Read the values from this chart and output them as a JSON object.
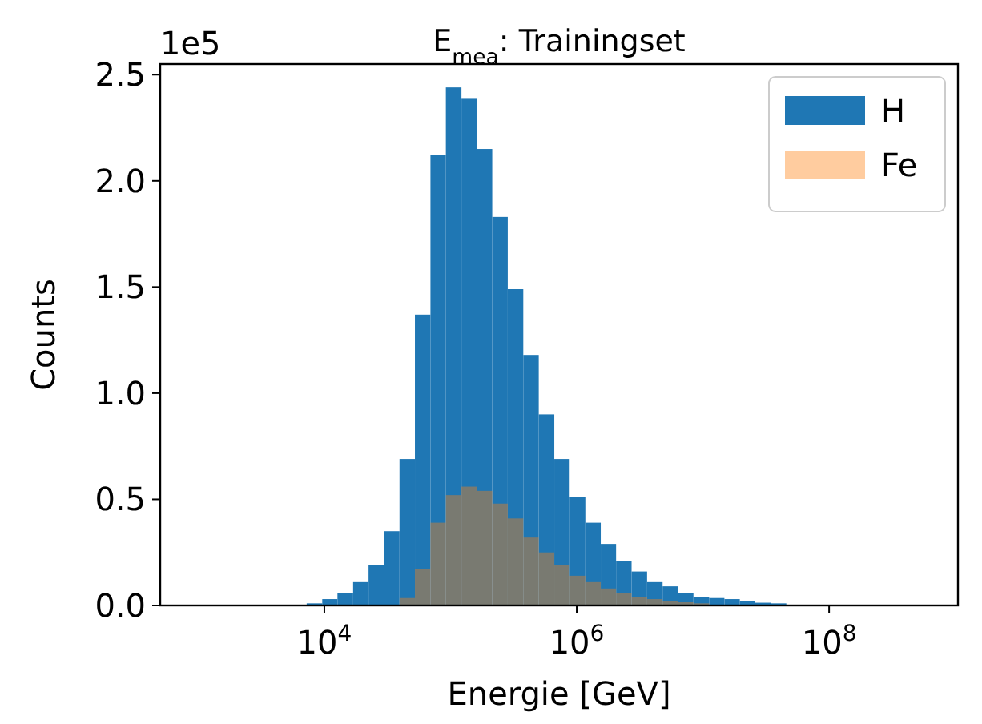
{
  "chart_data": {
    "type": "histogram",
    "title": "E$_{mea}$: Trainingset",
    "xlabel": "Energie [GeV]",
    "ylabel": "Counts",
    "annotations": [
      "1e5"
    ],
    "log": "x",
    "grid": false,
    "legend": "top right",
    "bins": [
      7240,
      9620,
      12700,
      16900,
      22400,
      29700,
      39400,
      52200,
      69300,
      91800,
      122000,
      162000,
      214000,
      284000,
      377000,
      500000,
      664000,
      879000,
      1170000,
      1550000,
      2050000,
      2720000,
      3610000,
      4790000,
      6340000,
      8410000,
      11200000,
      14800000,
      19600000,
      26000000,
      34500000,
      45800000
    ],
    "series": [
      {
        "name": "H",
        "color": "#1f77b4",
        "values": [
          0.01,
          0.03,
          0.06,
          0.11,
          0.19,
          0.35,
          0.69,
          1.37,
          2.12,
          2.44,
          2.39,
          2.15,
          1.83,
          1.49,
          1.18,
          0.9,
          0.69,
          0.51,
          0.39,
          0.29,
          0.21,
          0.16,
          0.11,
          0.09,
          0.06,
          0.04,
          0.035,
          0.03,
          0.02,
          0.013,
          0.01
        ]
      },
      {
        "name": "Fe",
        "color": "#ff7f0e",
        "values": [
          0,
          0,
          0,
          0,
          0,
          0,
          0.035,
          0.17,
          0.39,
          0.52,
          0.56,
          0.54,
          0.48,
          0.41,
          0.32,
          0.25,
          0.19,
          0.14,
          0.11,
          0.08,
          0.06,
          0.04,
          0.03,
          0.02,
          0.015,
          0.01,
          null,
          null,
          0,
          0,
          0
        ]
      }
    ],
    "xlim": [
      500,
      1050000000
    ],
    "ylim": [
      0,
      2.55
    ],
    "xticks": [
      {
        "value": 10000,
        "label": "10$^{4}$"
      },
      {
        "value": 1000000,
        "label": "10$^{6}$"
      },
      {
        "value": 100000000,
        "label": "10$^{8}$"
      }
    ],
    "yticks": [
      {
        "value": 0,
        "label": "0.0"
      },
      {
        "value": 0.5,
        "label": "0.5"
      },
      {
        "value": 1,
        "label": "1.0"
      },
      {
        "value": 1.5,
        "label": "1.5"
      },
      {
        "value": 2,
        "label": "2.0"
      },
      {
        "value": 2.5,
        "label": "2.5"
      }
    ]
  }
}
